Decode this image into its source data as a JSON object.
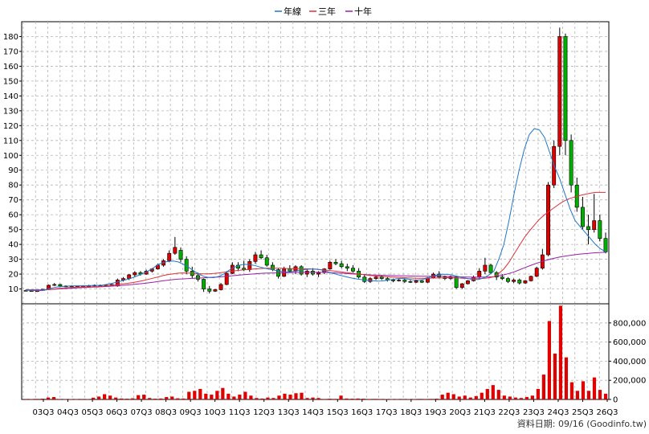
{
  "chart_data": {
    "type": "candlestick",
    "legend": [
      {
        "name": "年線",
        "color": "#1f77c8"
      },
      {
        "name": "三年",
        "color": "#e0303a"
      },
      {
        "name": "十年",
        "color": "#9b1fa8"
      }
    ],
    "legend_placement": "top-center",
    "price_axis": {
      "min": 0,
      "max": 190,
      "ticks": [
        10,
        20,
        30,
        40,
        50,
        60,
        70,
        80,
        90,
        100,
        110,
        120,
        130,
        140,
        150,
        160,
        170,
        180
      ]
    },
    "volume_axis": {
      "min": 0,
      "max": 1000000,
      "ticks": [
        0,
        200000,
        400000,
        600000,
        800000
      ],
      "tick_labels": [
        "0",
        "200,000",
        "400,000",
        "600,000",
        "800,000"
      ]
    },
    "x_labels": [
      "03Q3",
      "04Q3",
      "05Q3",
      "06Q3",
      "07Q3",
      "08Q3",
      "09Q3",
      "10Q3",
      "11Q3",
      "12Q3",
      "13Q3",
      "14Q3",
      "15Q3",
      "16Q3",
      "17Q3",
      "18Q3",
      "19Q3",
      "20Q3",
      "21Q3",
      "22Q3",
      "23Q3",
      "24Q3",
      "25Q3",
      "26Q3"
    ],
    "grid": true,
    "source_text": "資料日期: 09/16 (Goodinfo.tw)",
    "candles": [
      [
        9,
        9.5,
        8.5,
        8.8
      ],
      [
        8.8,
        9,
        8.2,
        8.5
      ],
      [
        8.5,
        9,
        8,
        8.8
      ],
      [
        9,
        10,
        8.8,
        9.8
      ],
      [
        10,
        13,
        9.8,
        12.5
      ],
      [
        12.5,
        14,
        12,
        13
      ],
      [
        13,
        13.5,
        11.5,
        12
      ],
      [
        12,
        12.5,
        11.5,
        12
      ],
      [
        12,
        12.5,
        11,
        11.5
      ],
      [
        11.5,
        12,
        11,
        11.8
      ],
      [
        11.8,
        12.5,
        11.5,
        12
      ],
      [
        12,
        12.8,
        11.5,
        12.2
      ],
      [
        12,
        13,
        11.5,
        12.5
      ],
      [
        12.5,
        13,
        12,
        12.2
      ],
      [
        12.2,
        13,
        11.8,
        12.5
      ],
      [
        12.5,
        13.5,
        12,
        13
      ],
      [
        12,
        17,
        11.5,
        16
      ],
      [
        16,
        18,
        15,
        17
      ],
      [
        17,
        20,
        16,
        19.5
      ],
      [
        19.5,
        22,
        18,
        21
      ],
      [
        21,
        22,
        19,
        20
      ],
      [
        20,
        23,
        19.5,
        22
      ],
      [
        22,
        24,
        21,
        23.5
      ],
      [
        23.5,
        27,
        23,
        26
      ],
      [
        26,
        30,
        25,
        29
      ],
      [
        29,
        36,
        28,
        34
      ],
      [
        34,
        45,
        33,
        38
      ],
      [
        36,
        38,
        28,
        30
      ],
      [
        30,
        32,
        20,
        22
      ],
      [
        22,
        25,
        17,
        19
      ],
      [
        19,
        21,
        15,
        16.5
      ],
      [
        16.5,
        17,
        8,
        10
      ],
      [
        10,
        12,
        7,
        8.5
      ],
      [
        8.5,
        10,
        8,
        9.5
      ],
      [
        9.5,
        14,
        9,
        13
      ],
      [
        13,
        22,
        12.5,
        20.5
      ],
      [
        20.5,
        28,
        20,
        26
      ],
      [
        26,
        28,
        22,
        24
      ],
      [
        24,
        29,
        22,
        23
      ],
      [
        23,
        30,
        21.5,
        28.5
      ],
      [
        28.5,
        35,
        27,
        33
      ],
      [
        33,
        36,
        30,
        31
      ],
      [
        31,
        33,
        25,
        26
      ],
      [
        26,
        28,
        22,
        23
      ],
      [
        23,
        24,
        17,
        18.5
      ],
      [
        18.5,
        25,
        18,
        23.5
      ],
      [
        23.5,
        26,
        21,
        22
      ],
      [
        22,
        26,
        20,
        25
      ],
      [
        25,
        26,
        19,
        20
      ],
      [
        20,
        23,
        18,
        22
      ],
      [
        22,
        24,
        19,
        20
      ],
      [
        20,
        22,
        18,
        21
      ],
      [
        21,
        24,
        20,
        23.5
      ],
      [
        23.5,
        29,
        23,
        28
      ],
      [
        28,
        30,
        26,
        27
      ],
      [
        27,
        29,
        24,
        25
      ],
      [
        25,
        27,
        22,
        24
      ],
      [
        24,
        26,
        21,
        22
      ],
      [
        22,
        24,
        17,
        18
      ],
      [
        18,
        20,
        14,
        15
      ],
      [
        15,
        18,
        14,
        17
      ],
      [
        17,
        19,
        16,
        18
      ],
      [
        18,
        19,
        16,
        17
      ],
      [
        17,
        18,
        15,
        16
      ],
      [
        16,
        17,
        14.5,
        15.5
      ],
      [
        15.5,
        17,
        15,
        16
      ],
      [
        16,
        17,
        14,
        15
      ],
      [
        15,
        16,
        14,
        14.5
      ],
      [
        14.5,
        16,
        14,
        15.5
      ],
      [
        15.5,
        16,
        14,
        14.5
      ],
      [
        14.5,
        18,
        14,
        17.5
      ],
      [
        17.5,
        21,
        17,
        20
      ],
      [
        20,
        22,
        17,
        18
      ],
      [
        18,
        19,
        16,
        17
      ],
      [
        17,
        19,
        16,
        18
      ],
      [
        18,
        19,
        10,
        11
      ],
      [
        11,
        14,
        10,
        13.5
      ],
      [
        13.5,
        16,
        13,
        15.5
      ],
      [
        15.5,
        19,
        15,
        18
      ],
      [
        18,
        24,
        17,
        22
      ],
      [
        22,
        31,
        20,
        26
      ],
      [
        26,
        27,
        20,
        21
      ],
      [
        21,
        22,
        16,
        18
      ],
      [
        18,
        20,
        16,
        17
      ],
      [
        17,
        18,
        14,
        15
      ],
      [
        15,
        17,
        14,
        16
      ],
      [
        16,
        17,
        13,
        14
      ],
      [
        14,
        16,
        13.5,
        15.5
      ],
      [
        15.5,
        19,
        15,
        18.5
      ],
      [
        18.5,
        25,
        18,
        24
      ],
      [
        24,
        37,
        23,
        33
      ],
      [
        33,
        82,
        32,
        80
      ],
      [
        80,
        110,
        78,
        106
      ],
      [
        106,
        186,
        100,
        180
      ],
      [
        180,
        182,
        100,
        110
      ],
      [
        110,
        114,
        75,
        80
      ],
      [
        80,
        85,
        62,
        65
      ],
      [
        65,
        72,
        50,
        52
      ],
      [
        52,
        60,
        40,
        50
      ],
      [
        50,
        74,
        48,
        56
      ],
      [
        56,
        60,
        42,
        44
      ],
      [
        44,
        48,
        34,
        35
      ]
    ],
    "volume": [
      5000,
      4000,
      6000,
      8000,
      20000,
      25000,
      5000,
      3000,
      4000,
      3000,
      5000,
      4000,
      18000,
      30000,
      55000,
      40000,
      20000,
      10000,
      8000,
      12000,
      45000,
      50000,
      15000,
      8000,
      10000,
      25000,
      30000,
      12000,
      10000,
      80000,
      90000,
      110000,
      60000,
      50000,
      90000,
      120000,
      60000,
      30000,
      50000,
      80000,
      40000,
      15000,
      10000,
      20000,
      15000,
      40000,
      60000,
      50000,
      65000,
      70000,
      15000,
      20000,
      15000,
      5000,
      8000,
      6000,
      40000,
      10000,
      8000,
      10000,
      8000,
      5000,
      6000,
      5000,
      4000,
      3000,
      3000,
      5000,
      4000,
      3000,
      6000,
      5000,
      6000,
      8000,
      50000,
      70000,
      55000,
      30000,
      40000,
      20000,
      35000,
      70000,
      110000,
      150000,
      100000,
      40000,
      30000,
      20000,
      15000,
      25000,
      40000,
      110000,
      260000,
      820000,
      480000,
      980000,
      440000,
      180000,
      90000,
      190000,
      90000,
      230000,
      100000,
      60000
    ],
    "ma_year": [
      9.2,
      9.0,
      8.9,
      8.9,
      9.6,
      10.5,
      11.2,
      11.6,
      11.9,
      12.0,
      12.1,
      12.1,
      12.2,
      12.3,
      12.4,
      12.5,
      13.1,
      13.8,
      14.6,
      15.6,
      16.5,
      17.6,
      18.9,
      20.4,
      22.0,
      24.0,
      26.3,
      27.8,
      28.6,
      28.8,
      28.2,
      26.6,
      24.6,
      22.3,
      20.1,
      18.5,
      17.7,
      17.6,
      18.5,
      20.2,
      22.6,
      24.6,
      26.0,
      26.6,
      26.4,
      25.8,
      24.8,
      24.0,
      23.3,
      22.6,
      22.0,
      21.6,
      21.5,
      22.0,
      22.6,
      23.1,
      23.4,
      23.4,
      22.9,
      22.0,
      20.9,
      19.9,
      19.0,
      18.2,
      17.4,
      16.8,
      16.3,
      15.9,
      15.6,
      15.3,
      15.4,
      15.8,
      16.3,
      16.9,
      17.2,
      16.7,
      16.2,
      16.0,
      16.4,
      17.3,
      18.6,
      19.5,
      19.9,
      19.8,
      19.2,
      18.4,
      17.6,
      16.9,
      16.3,
      16.4,
      17.4,
      19.2,
      21.8,
      30.0,
      40.0,
      56.0,
      74.0,
      90.0,
      104.0,
      114.0,
      118.0,
      117.0,
      112.0,
      102.0,
      92.0,
      84.0,
      74.0,
      64.0,
      56.0,
      52.0,
      48.0,
      44.0,
      40.0,
      37.0,
      35.0
    ],
    "ma_3year": [
      9.5,
      9.3,
      9.2,
      9.1,
      9.3,
      9.7,
      10.1,
      10.5,
      10.8,
      11.0,
      11.2,
      11.3,
      11.4,
      11.5,
      11.6,
      11.8,
      12.1,
      12.5,
      12.9,
      13.3,
      13.8,
      14.3,
      14.9,
      15.6,
      16.4,
      17.2,
      18.1,
      19.0,
      19.7,
      20.2,
      20.6,
      20.8,
      20.7,
      20.5,
      20.3,
      20.2,
      20.2,
      20.4,
      20.8,
      21.2,
      21.7,
      22.2,
      22.6,
      22.9,
      23.2,
      23.5,
      23.7,
      23.9,
      24.0,
      24.0,
      23.9,
      23.8,
      23.7,
      23.6,
      23.6,
      23.6,
      23.5,
      23.3,
      23.0,
      22.7,
      22.3,
      21.9,
      21.5,
      21.0,
      20.6,
      20.2,
      19.8,
      19.4,
      19.0,
      18.7,
      18.4,
      18.2,
      18.0,
      17.8,
      17.7,
      17.5,
      17.3,
      17.2,
      17.2,
      17.2,
      17.3,
      17.4,
      17.5,
      17.6,
      17.5,
      17.4,
      17.2,
      17.0,
      16.9,
      16.9,
      17.1,
      17.5,
      18.2,
      20.5,
      23.5,
      28.0,
      33.5,
      39.0,
      44.5,
      49.0,
      53.0,
      57.0,
      60.0,
      62.5,
      65.0,
      67.5,
      69.5,
      71.0,
      72.0,
      73.0,
      73.8,
      74.5,
      75.0,
      75.0,
      75.0
    ],
    "ma_10year": [
      9.4,
      9.4,
      9.4,
      9.4,
      9.5,
      9.7,
      9.9,
      10.1,
      10.3,
      10.5,
      10.7,
      10.9,
      11.0,
      11.2,
      11.3,
      11.5,
      11.7,
      11.9,
      12.1,
      12.4,
      12.7,
      13.0,
      13.3,
      13.7,
      14.1,
      14.5,
      15.0,
      15.5,
      15.9,
      16.3,
      16.6,
      16.8,
      17.0,
      17.2,
      17.3,
      17.5,
      17.7,
      17.9,
      18.1,
      18.4,
      18.7,
      19.0,
      19.3,
      19.6,
      19.9,
      20.2,
      20.4,
      20.6,
      20.7,
      20.8,
      20.9,
      20.9,
      21.0,
      21.1,
      21.2,
      21.3,
      21.3,
      21.3,
      21.2,
      21.1,
      21.0,
      20.8,
      20.6,
      20.4,
      20.2,
      20.0,
      19.8,
      19.6,
      19.4,
      19.3,
      19.2,
      19.1,
      19.0,
      18.9,
      18.9,
      18.8,
      18.7,
      18.6,
      18.5,
      18.5,
      18.5,
      18.5,
      18.5,
      18.4,
      18.3,
      18.2,
      18.1,
      18.0,
      17.9,
      17.9,
      18.0,
      18.1,
      18.3,
      18.8,
      19.5,
      20.4,
      21.5,
      22.8,
      24.2,
      25.5,
      26.8,
      28.0,
      29.0,
      30.0,
      30.8,
      31.5,
      32.1,
      32.6,
      33.1,
      33.5,
      33.8,
      34.1,
      34.4,
      34.6,
      34.8
    ]
  }
}
